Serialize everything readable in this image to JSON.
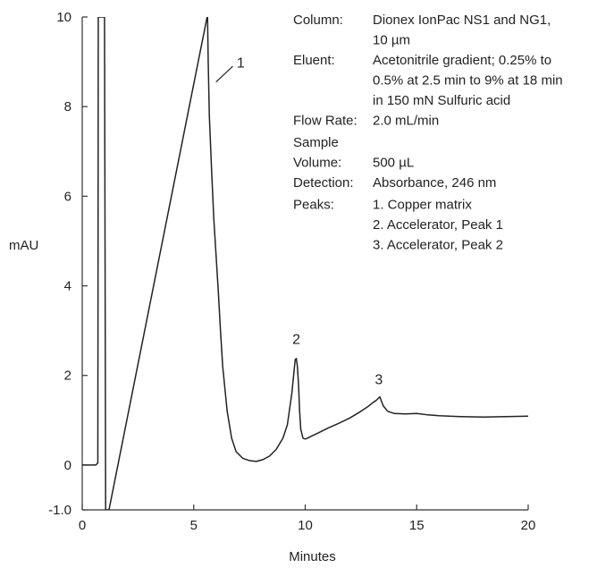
{
  "chart_data": {
    "type": "line",
    "title": "",
    "xlabel": "Minutes",
    "ylabel": "mAU",
    "xlim": [
      0,
      20
    ],
    "ylim": [
      -1.0,
      10
    ],
    "x_ticks": [
      "0",
      "5",
      "10",
      "15",
      "20"
    ],
    "y_ticks": [
      "-1.0",
      "0",
      "2",
      "4",
      "6",
      "8",
      "10"
    ],
    "grid": false,
    "series": [
      {
        "color": "#222222",
        "x": [
          0,
          0.6,
          0.65,
          0.7,
          0.72,
          0.75,
          0.8,
          1.0,
          1.05,
          1.07,
          1.1,
          1.15,
          1.2,
          5.6,
          5.62,
          5.65,
          5.7,
          5.8,
          5.9,
          6.0,
          6.1,
          6.2,
          6.3,
          6.5,
          6.7,
          6.9,
          7.2,
          7.5,
          7.8,
          8.1,
          8.4,
          8.7,
          9.0,
          9.2,
          9.4,
          9.5,
          9.55,
          9.6,
          9.65,
          9.7,
          9.75,
          9.8,
          9.9,
          10.0,
          10.1,
          10.3,
          10.6,
          11.0,
          11.5,
          12.0,
          12.5,
          12.8,
          13.0,
          13.2,
          13.3,
          13.35,
          13.4,
          13.5,
          13.7,
          14.0,
          14.5,
          15.0,
          15.5,
          16.0,
          17.0,
          18.0,
          19.0,
          20.0
        ],
        "y": [
          0.0,
          0.0,
          0.02,
          0.05,
          10,
          10,
          10,
          10,
          -1.0,
          -1.0,
          -1.0,
          -1.0,
          -1.0,
          10,
          10,
          9.0,
          7.8,
          6.6,
          5.5,
          4.7,
          3.9,
          3.0,
          2.2,
          1.2,
          0.6,
          0.3,
          0.15,
          0.1,
          0.08,
          0.12,
          0.2,
          0.35,
          0.6,
          0.9,
          1.6,
          2.1,
          2.35,
          2.38,
          2.2,
          1.8,
          1.2,
          0.8,
          0.6,
          0.58,
          0.6,
          0.65,
          0.72,
          0.82,
          0.93,
          1.05,
          1.2,
          1.3,
          1.38,
          1.45,
          1.5,
          1.52,
          1.45,
          1.32,
          1.2,
          1.15,
          1.14,
          1.15,
          1.12,
          1.1,
          1.08,
          1.07,
          1.08,
          1.09
        ]
      }
    ],
    "peak_labels": [
      {
        "label": "1",
        "x": 6.85,
        "y": 8.95
      },
      {
        "label": "2",
        "x": 9.6,
        "y": 2.7
      },
      {
        "label": "3",
        "x": 13.3,
        "y": 1.8
      }
    ]
  },
  "info_panel": {
    "rows": [
      {
        "key": "Column:",
        "value_lines": [
          "Dionex IonPac NS1 and NG1,",
          "10 µm"
        ]
      },
      {
        "key": "Eluent:",
        "value_lines": [
          "Acetonitrile gradient; 0.25% to",
          "0.5% at 2.5 min to 9% at 18 min",
          "in 150 mN Sulfuric acid"
        ]
      },
      {
        "key": "Flow Rate:",
        "value_lines": [
          "2.0 mL/min"
        ]
      },
      {
        "key": "Sample",
        "value_lines": []
      },
      {
        "key": "Volume:",
        "value_lines": [
          "500 µL"
        ]
      },
      {
        "key": "Detection:",
        "value_lines": [
          "Absorbance, 246 nm"
        ]
      },
      {
        "key": "Peaks:",
        "value_lines": [
          "1. Copper matrix",
          "2. Accelerator, Peak 1",
          "3. Accelerator, Peak 2"
        ]
      }
    ]
  }
}
